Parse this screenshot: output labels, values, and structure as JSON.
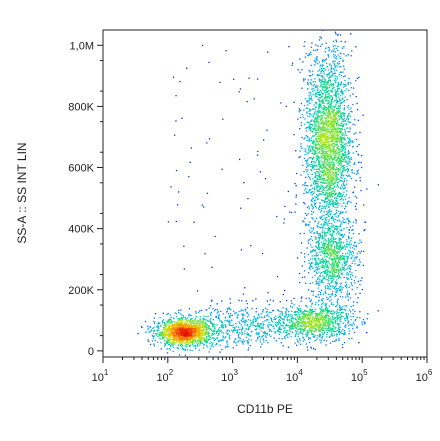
{
  "chart_data": {
    "type": "scatter",
    "title": "",
    "xlabel": "CD11b PE",
    "ylabel": "SS-A :: SS INT LIN",
    "x_scale": "log",
    "xlim": [
      10,
      1000000
    ],
    "ylim": [
      -20000,
      1050000
    ],
    "x_ticks": [
      {
        "value": 10,
        "base": "10",
        "exp": "1"
      },
      {
        "value": 100,
        "base": "10",
        "exp": "2"
      },
      {
        "value": 1000,
        "base": "10",
        "exp": "3"
      },
      {
        "value": 10000,
        "base": "10",
        "exp": "4"
      },
      {
        "value": 100000,
        "base": "10",
        "exp": "5"
      },
      {
        "value": 1000000,
        "base": "10",
        "exp": "6"
      }
    ],
    "y_ticks": [
      {
        "value": 0,
        "label": "0"
      },
      {
        "value": 200000,
        "label": "200K"
      },
      {
        "value": 400000,
        "label": "400K"
      },
      {
        "value": 600000,
        "label": "600K"
      },
      {
        "value": 800000,
        "label": "800K"
      },
      {
        "value": 1000000,
        "label": "1,0M"
      }
    ],
    "grid": false,
    "density_colormap": [
      "#0000c8",
      "#00a0ff",
      "#00d890",
      "#c8e800",
      "#ffa000",
      "#e81000"
    ],
    "populations": [
      {
        "x_center": 180,
        "y_center": 60000,
        "x_spread_decades": 0.22,
        "y_spread": 22000,
        "relative_density": "highest"
      },
      {
        "x_center": 1500,
        "y_center": 80000,
        "x_spread_decades": 0.45,
        "y_spread": 35000,
        "relative_density": "low"
      },
      {
        "x_center": 18000,
        "y_center": 95000,
        "x_spread_decades": 0.3,
        "y_spread": 30000,
        "relative_density": "medium"
      },
      {
        "x_center": 30000,
        "y_center": 680000,
        "x_spread_decades": 0.18,
        "y_spread": 150000,
        "relative_density": "high"
      },
      {
        "x_center": 35000,
        "y_center": 300000,
        "x_spread_decades": 0.2,
        "y_spread": 70000,
        "relative_density": "medium"
      }
    ]
  }
}
